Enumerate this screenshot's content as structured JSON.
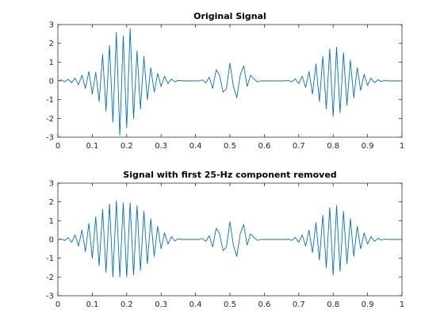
{
  "chart_data": [
    {
      "type": "line",
      "title": "Original Signal",
      "xlabel": "",
      "ylabel": "",
      "xlim": [
        0,
        1
      ],
      "ylim": [
        -3,
        3
      ],
      "xticks": [
        "0",
        "0.1",
        "0.2",
        "0.3",
        "0.4",
        "0.5",
        "0.6",
        "0.7",
        "0.8",
        "0.9",
        "1"
      ],
      "yticks": [
        "3",
        "2",
        "1",
        "0",
        "-1",
        "-2",
        "-3"
      ],
      "grid": false,
      "series": [
        {
          "color": "#0072bd",
          "x": [
            0,
            0.01,
            0.02,
            0.03,
            0.04,
            0.05,
            0.06,
            0.07,
            0.08,
            0.09,
            0.1,
            0.11,
            0.12,
            0.13,
            0.14,
            0.15,
            0.16,
            0.17,
            0.18,
            0.19,
            0.2,
            0.21,
            0.22,
            0.23,
            0.24,
            0.25,
            0.26,
            0.27,
            0.28,
            0.29,
            0.3,
            0.31,
            0.32,
            0.33,
            0.34,
            0.35,
            0.36,
            0.37,
            0.38,
            0.39,
            0.4,
            0.41,
            0.42,
            0.43,
            0.44,
            0.45,
            0.46,
            0.47,
            0.48,
            0.49,
            0.5,
            0.51,
            0.52,
            0.53,
            0.54,
            0.55,
            0.56,
            0.57,
            0.58,
            0.59,
            0.6,
            0.61,
            0.62,
            0.63,
            0.64,
            0.65,
            0.66,
            0.67,
            0.68,
            0.69,
            0.7,
            0.71,
            0.72,
            0.73,
            0.74,
            0.75,
            0.76,
            0.77,
            0.78,
            0.79,
            0.8,
            0.81,
            0.82,
            0.83,
            0.84,
            0.85,
            0.86,
            0.87,
            0.88,
            0.89,
            0.9,
            0.91,
            0.92,
            0.93,
            0.94,
            0.95,
            0.96,
            0.97,
            0.98,
            0.99,
            1
          ],
          "y": [
            0,
            0.05,
            -0.05,
            0.08,
            -0.1,
            0.15,
            -0.2,
            0.3,
            -0.4,
            0.5,
            -0.7,
            0.45,
            -1.1,
            1.4,
            -1.6,
            1.9,
            -2.2,
            2.6,
            -2.9,
            2.4,
            -2.5,
            2.8,
            -2.0,
            1.6,
            -1.5,
            1.3,
            -1.0,
            0.7,
            -0.6,
            0.4,
            -0.3,
            0.25,
            -0.15,
            0.1,
            -0.05,
            0.03,
            0,
            0,
            0,
            0,
            0,
            0,
            0.05,
            -0.1,
            0.2,
            -0.4,
            0.6,
            0.3,
            -0.6,
            -0.4,
            0.95,
            -0.3,
            -0.9,
            0.3,
            0.8,
            -0.3,
            0.3,
            0.1,
            -0.05,
            0,
            0,
            0,
            0,
            0,
            0,
            0,
            0,
            0.02,
            -0.05,
            0.1,
            -0.15,
            0.25,
            -0.35,
            0.5,
            -0.7,
            0.9,
            -1.1,
            1.3,
            -1.5,
            1.7,
            -1.9,
            1.8,
            -1.7,
            1.5,
            -1.3,
            1.1,
            -0.9,
            0.7,
            -0.5,
            0.35,
            -0.25,
            0.15,
            -0.1,
            0.06,
            -0.03,
            0.02,
            0,
            0,
            0,
            0,
            0
          ]
        }
      ]
    },
    {
      "type": "line",
      "title": "Signal with first 25-Hz component removed",
      "xlabel": "",
      "ylabel": "",
      "xlim": [
        0,
        1
      ],
      "ylim": [
        -3,
        3
      ],
      "xticks": [
        "0",
        "0.1",
        "0.2",
        "0.3",
        "0.4",
        "0.5",
        "0.6",
        "0.7",
        "0.8",
        "0.9",
        "1"
      ],
      "yticks": [
        "3",
        "2",
        "1",
        "0",
        "-1",
        "-2",
        "-3"
      ],
      "grid": false,
      "series": [
        {
          "color": "#0072bd",
          "x": [
            0,
            0.01,
            0.02,
            0.03,
            0.04,
            0.05,
            0.06,
            0.07,
            0.08,
            0.09,
            0.1,
            0.11,
            0.12,
            0.13,
            0.14,
            0.15,
            0.16,
            0.17,
            0.18,
            0.19,
            0.2,
            0.21,
            0.22,
            0.23,
            0.24,
            0.25,
            0.26,
            0.27,
            0.28,
            0.29,
            0.3,
            0.31,
            0.32,
            0.33,
            0.34,
            0.35,
            0.36,
            0.37,
            0.38,
            0.39,
            0.4,
            0.41,
            0.42,
            0.43,
            0.44,
            0.45,
            0.46,
            0.47,
            0.48,
            0.49,
            0.5,
            0.51,
            0.52,
            0.53,
            0.54,
            0.55,
            0.56,
            0.57,
            0.58,
            0.59,
            0.6,
            0.61,
            0.62,
            0.63,
            0.64,
            0.65,
            0.66,
            0.67,
            0.68,
            0.69,
            0.7,
            0.71,
            0.72,
            0.73,
            0.74,
            0.75,
            0.76,
            0.77,
            0.78,
            0.79,
            0.8,
            0.81,
            0.82,
            0.83,
            0.84,
            0.85,
            0.86,
            0.87,
            0.88,
            0.89,
            0.9,
            0.91,
            0.92,
            0.93,
            0.94,
            0.95,
            0.96,
            0.97,
            0.98,
            0.99,
            1
          ],
          "y": [
            0,
            0.03,
            -0.06,
            0.1,
            -0.16,
            0.25,
            -0.35,
            0.5,
            -0.65,
            0.85,
            -1.0,
            1.2,
            -1.4,
            1.6,
            -1.75,
            1.9,
            -2.0,
            2.05,
            -2.0,
            1.95,
            -2.0,
            1.95,
            -1.9,
            1.8,
            -1.65,
            1.5,
            -1.3,
            1.1,
            -0.9,
            0.7,
            -0.5,
            0.35,
            -0.25,
            0.15,
            -0.08,
            0.04,
            0,
            0,
            0,
            0,
            0,
            0,
            0.05,
            -0.1,
            0.2,
            -0.4,
            0.6,
            0.3,
            -0.6,
            -0.4,
            0.95,
            -0.3,
            -0.9,
            0.3,
            0.8,
            -0.3,
            0.3,
            0.1,
            -0.05,
            0,
            0,
            0,
            0,
            0,
            0,
            0,
            0,
            0.02,
            -0.05,
            0.1,
            -0.15,
            0.25,
            -0.35,
            0.5,
            -0.7,
            0.9,
            -1.1,
            1.3,
            -1.5,
            1.7,
            -1.9,
            1.8,
            -1.7,
            1.5,
            -1.3,
            1.1,
            -0.9,
            0.7,
            -0.5,
            0.35,
            -0.25,
            0.15,
            -0.1,
            0.06,
            -0.03,
            0.02,
            0,
            0,
            0,
            0,
            0
          ]
        }
      ]
    }
  ]
}
